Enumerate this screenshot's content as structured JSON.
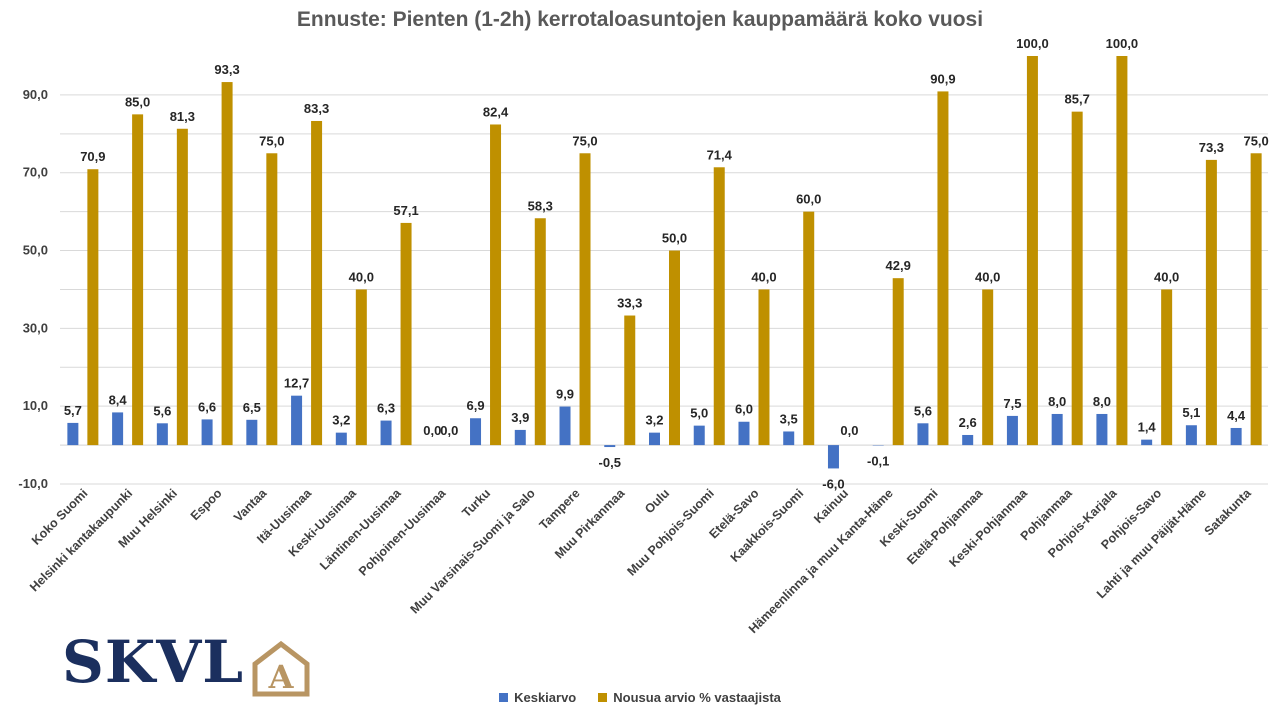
{
  "chart_data": {
    "type": "bar",
    "title": "Ennuste: Pienten (1-2h) kerrotaloasuntojen kauppamäärä koko vuosi",
    "ylim": [
      -10,
      100
    ],
    "yticks": [
      "90,0",
      "70,0",
      "50,0",
      "30,0",
      "10,0",
      "-10,0"
    ],
    "ytick_values": [
      90,
      70,
      50,
      30,
      10,
      -10
    ],
    "grid": true,
    "legend_position": "bottom",
    "categories": [
      "Koko Suomi",
      "Helsinki kantakaupunki",
      "Muu Helsinki",
      "Espoo",
      "Vantaa",
      "Itä-Uusimaa",
      "Keski-Uusimaa",
      "Läntinen-Uusimaa",
      "Pohjoinen-Uusimaa",
      "Turku",
      "Muu Varsinais-Suomi ja Salo",
      "Tampere",
      "Muu Pirkanmaa",
      "Oulu",
      "Muu Pohjois-Suomi",
      "Etelä-Savo",
      "Kaakkois-Suomi",
      "Kainuu",
      "Hämeenlinna ja muu Kanta-Häme",
      "Keski-Suomi",
      "Etelä-Pohjanmaa",
      "Keski-Pohjanmaa",
      "Pohjanmaa",
      "Pohjois-Karjala",
      "Pohjois-Savo",
      "Lahti ja muu Päijät-Häme",
      "Satakunta"
    ],
    "series": [
      {
        "name": "Keskiarvo",
        "color": "#4472c4",
        "values": [
          5.7,
          8.4,
          5.6,
          6.6,
          6.5,
          12.7,
          3.2,
          6.3,
          0.0,
          6.9,
          3.9,
          9.9,
          -0.5,
          3.2,
          5.0,
          6.0,
          3.5,
          -6.0,
          -0.1,
          5.6,
          2.6,
          7.5,
          8.0,
          8.0,
          1.4,
          5.1,
          4.4
        ],
        "labels": [
          "5,7",
          "8,4",
          "5,6",
          "6,6",
          "6,5",
          "12,7",
          "3,2",
          "6,3",
          "0,0",
          "6,9",
          "3,9",
          "9,9",
          "-0,5",
          "3,2",
          "5,0",
          "6,0",
          "3,5",
          "-6,0",
          "-0,1",
          "5,6",
          "2,6",
          "7,5",
          "8,0",
          "8,0",
          "1,4",
          "5,1",
          "4,4"
        ]
      },
      {
        "name": "Nousua arvio % vastaajista",
        "color": "#bf9000",
        "values": [
          70.9,
          85.0,
          81.3,
          93.3,
          75.0,
          83.3,
          40.0,
          57.1,
          0.0,
          82.4,
          58.3,
          75.0,
          33.3,
          50.0,
          71.4,
          40.0,
          60.0,
          0.0,
          42.9,
          90.9,
          40.0,
          100.0,
          85.7,
          100.0,
          40.0,
          73.3,
          75.0
        ],
        "labels": [
          "70,9",
          "85,0",
          "81,3",
          "93,3",
          "75,0",
          "83,3",
          "40,0",
          "57,1",
          "0,0",
          "82,4",
          "58,3",
          "75,0",
          "33,3",
          "50,0",
          "71,4",
          "40,0",
          "60,0",
          "0,0",
          "42,9",
          "90,9",
          "40,0",
          "100,0",
          "85,7",
          "100,0",
          "40,0",
          "73,3",
          "75,0"
        ]
      }
    ]
  },
  "logo": {
    "text": "SKVL",
    "mark_letter": "A",
    "text_color": "#1b2f5e",
    "mark_color": "#b89563"
  }
}
